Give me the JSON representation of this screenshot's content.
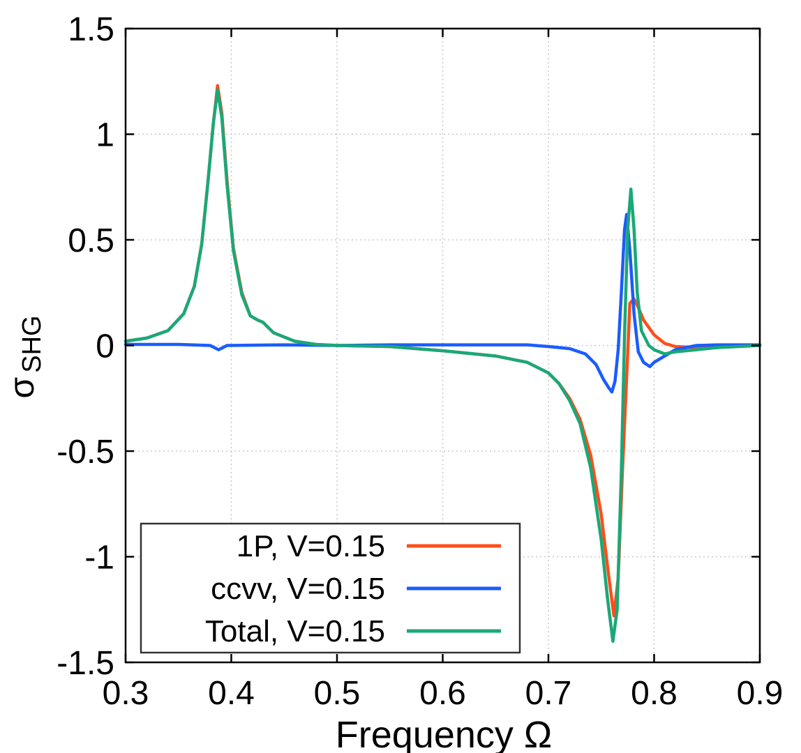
{
  "chart_data": {
    "type": "line",
    "title": "",
    "xlabel": "Frequency Ω",
    "ylabel_main": "σ",
    "ylabel_sub": "SHG",
    "xlim": [
      0.3,
      0.9
    ],
    "ylim": [
      -1.5,
      1.5
    ],
    "grid": true,
    "legend_position": "bottom-left",
    "x_ticks": [
      0.3,
      0.4,
      0.5,
      0.6,
      0.7,
      0.8,
      0.9
    ],
    "x_tick_labels": [
      "0.3",
      "0.4",
      "0.5",
      "0.6",
      "0.7",
      "0.8",
      "0.9"
    ],
    "y_ticks": [
      1.5,
      1,
      0.5,
      0,
      -0.5,
      -1,
      -1.5
    ],
    "y_tick_labels": [
      "1.5",
      "1",
      "0.5",
      "0",
      "-0.5",
      "-1",
      "-1.5"
    ],
    "series": [
      {
        "name": "1P, V=0.15",
        "color": "#ff4d1a",
        "points": [
          [
            0.3,
            0.02
          ],
          [
            0.32,
            0.035
          ],
          [
            0.34,
            0.07
          ],
          [
            0.355,
            0.15
          ],
          [
            0.365,
            0.28
          ],
          [
            0.372,
            0.48
          ],
          [
            0.378,
            0.78
          ],
          [
            0.383,
            1.05
          ],
          [
            0.387,
            1.23
          ],
          [
            0.391,
            1.1
          ],
          [
            0.396,
            0.78
          ],
          [
            0.402,
            0.46
          ],
          [
            0.41,
            0.25
          ],
          [
            0.418,
            0.14
          ],
          [
            0.425,
            0.12
          ],
          [
            0.43,
            0.11
          ],
          [
            0.44,
            0.06
          ],
          [
            0.46,
            0.02
          ],
          [
            0.48,
            0.005
          ],
          [
            0.5,
            0.0
          ],
          [
            0.55,
            -0.005
          ],
          [
            0.6,
            -0.025
          ],
          [
            0.65,
            -0.05
          ],
          [
            0.68,
            -0.08
          ],
          [
            0.7,
            -0.13
          ],
          [
            0.71,
            -0.18
          ],
          [
            0.72,
            -0.25
          ],
          [
            0.73,
            -0.35
          ],
          [
            0.74,
            -0.52
          ],
          [
            0.75,
            -0.8
          ],
          [
            0.756,
            -1.05
          ],
          [
            0.762,
            -1.28
          ],
          [
            0.766,
            -1.1
          ],
          [
            0.77,
            -0.6
          ],
          [
            0.774,
            -0.15
          ],
          [
            0.777,
            0.2
          ],
          [
            0.781,
            0.22
          ],
          [
            0.785,
            0.18
          ],
          [
            0.79,
            0.12
          ],
          [
            0.8,
            0.05
          ],
          [
            0.81,
            0.01
          ],
          [
            0.82,
            -0.005
          ],
          [
            0.84,
            -0.01
          ],
          [
            0.86,
            -0.01
          ],
          [
            0.88,
            0.0
          ],
          [
            0.9,
            0.0
          ]
        ]
      },
      {
        "name": "ccvv, V=0.15",
        "color": "#1a5cff",
        "points": [
          [
            0.3,
            0.005
          ],
          [
            0.35,
            0.005
          ],
          [
            0.38,
            0.0
          ],
          [
            0.388,
            -0.02
          ],
          [
            0.396,
            0.0
          ],
          [
            0.45,
            0.003
          ],
          [
            0.5,
            0.0
          ],
          [
            0.55,
            0.003
          ],
          [
            0.6,
            0.003
          ],
          [
            0.65,
            0.003
          ],
          [
            0.68,
            0.003
          ],
          [
            0.7,
            -0.005
          ],
          [
            0.72,
            -0.015
          ],
          [
            0.735,
            -0.04
          ],
          [
            0.745,
            -0.09
          ],
          [
            0.752,
            -0.16
          ],
          [
            0.757,
            -0.2
          ],
          [
            0.76,
            -0.22
          ],
          [
            0.763,
            -0.17
          ],
          [
            0.766,
            -0.02
          ],
          [
            0.769,
            0.25
          ],
          [
            0.772,
            0.55
          ],
          [
            0.774,
            0.62
          ],
          [
            0.777,
            0.45
          ],
          [
            0.781,
            0.15
          ],
          [
            0.785,
            -0.03
          ],
          [
            0.79,
            -0.08
          ],
          [
            0.796,
            -0.1
          ],
          [
            0.8,
            -0.08
          ],
          [
            0.81,
            -0.05
          ],
          [
            0.82,
            -0.02
          ],
          [
            0.84,
            0.0
          ],
          [
            0.86,
            0.003
          ],
          [
            0.88,
            0.003
          ],
          [
            0.9,
            0.003
          ]
        ]
      },
      {
        "name": "Total, V=0.15",
        "color": "#1aa878",
        "points": [
          [
            0.3,
            0.02
          ],
          [
            0.32,
            0.035
          ],
          [
            0.34,
            0.07
          ],
          [
            0.355,
            0.15
          ],
          [
            0.365,
            0.28
          ],
          [
            0.372,
            0.48
          ],
          [
            0.378,
            0.78
          ],
          [
            0.383,
            1.05
          ],
          [
            0.387,
            1.21
          ],
          [
            0.391,
            1.08
          ],
          [
            0.396,
            0.76
          ],
          [
            0.402,
            0.45
          ],
          [
            0.41,
            0.24
          ],
          [
            0.418,
            0.14
          ],
          [
            0.425,
            0.12
          ],
          [
            0.43,
            0.11
          ],
          [
            0.44,
            0.06
          ],
          [
            0.46,
            0.02
          ],
          [
            0.48,
            0.005
          ],
          [
            0.5,
            0.0
          ],
          [
            0.55,
            -0.005
          ],
          [
            0.6,
            -0.025
          ],
          [
            0.65,
            -0.05
          ],
          [
            0.68,
            -0.08
          ],
          [
            0.7,
            -0.13
          ],
          [
            0.71,
            -0.18
          ],
          [
            0.72,
            -0.26
          ],
          [
            0.73,
            -0.37
          ],
          [
            0.74,
            -0.58
          ],
          [
            0.75,
            -0.92
          ],
          [
            0.756,
            -1.2
          ],
          [
            0.761,
            -1.4
          ],
          [
            0.765,
            -1.25
          ],
          [
            0.769,
            -0.6
          ],
          [
            0.772,
            0.05
          ],
          [
            0.775,
            0.55
          ],
          [
            0.778,
            0.74
          ],
          [
            0.781,
            0.55
          ],
          [
            0.784,
            0.25
          ],
          [
            0.788,
            0.07
          ],
          [
            0.795,
            0.0
          ],
          [
            0.8,
            -0.02
          ],
          [
            0.81,
            -0.04
          ],
          [
            0.82,
            -0.03
          ],
          [
            0.84,
            -0.02
          ],
          [
            0.86,
            -0.01
          ],
          [
            0.88,
            -0.005
          ],
          [
            0.9,
            0.0
          ]
        ]
      }
    ]
  }
}
